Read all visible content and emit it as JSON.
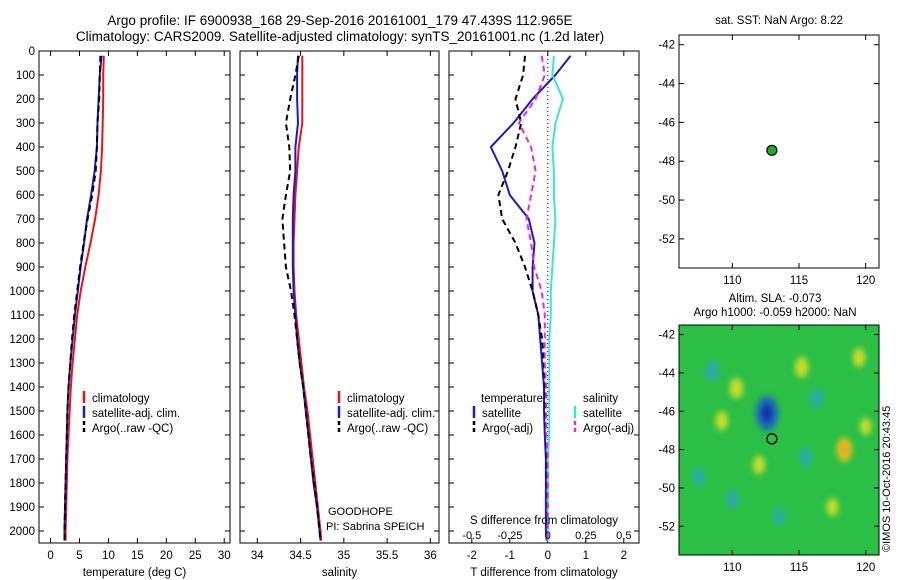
{
  "header": {
    "title_line1": "Argo profile: IF 6900938_168 29-Sep-2016 20161001_179 47.439S 112.965E",
    "title_line2": "Climatology: CARS2009. Satellite-adjusted climatology: synTS_20161001.nc (1.2d later)"
  },
  "colors": {
    "climatology": "#ee1111",
    "satellite": "#1a1acc",
    "argo": "#000000",
    "salinity_satellite": "#33e6e6",
    "salinity_argo": "#ee22ee",
    "argo_marker": "#22aa22"
  },
  "annotations": {
    "program": "GOODHOPE",
    "pi": "PI: Sabrina SPEICH",
    "credit": "©IMOS 10-Oct-2016 20:43:45"
  },
  "chart_data": [
    {
      "type": "line",
      "name": "temperature-profile",
      "xlabel": "temperature (deg C)",
      "ylabel": "",
      "xlim": [
        -2,
        31
      ],
      "ylim": [
        2050,
        0
      ],
      "xticks": [
        0,
        5,
        10,
        15,
        20,
        25,
        30
      ],
      "xtick_labels": [
        "0",
        "5",
        "10",
        "15",
        "20",
        "25",
        "30"
      ],
      "yticks": [
        0,
        100,
        200,
        300,
        400,
        500,
        600,
        700,
        800,
        900,
        1000,
        1100,
        1200,
        1300,
        1400,
        1500,
        1600,
        1700,
        1800,
        1900,
        2000
      ],
      "ytick_labels": [
        "0",
        "100",
        "200",
        "300",
        "400",
        "500",
        "600",
        "700",
        "800",
        "900",
        "1000",
        "1100",
        "1200",
        "1300",
        "1400",
        "1500",
        "1600",
        "1700",
        "1800",
        "1900",
        "2000"
      ],
      "legend": {
        "position": "center-right",
        "entries": [
          "climatology",
          "satellite-adj. clim.",
          "Argo(..raw -QC)"
        ]
      },
      "series": [
        {
          "name": "climatology",
          "role": "climatology",
          "style": "solid",
          "x": [
            9.2,
            9.1,
            9.1,
            9.0,
            8.9,
            8.7,
            8.3,
            7.7,
            6.9,
            6.0,
            5.2,
            4.6,
            4.2,
            3.8,
            3.5,
            3.3,
            3.1,
            2.9,
            2.8,
            2.7,
            2.6,
            2.6
          ],
          "y": [
            20,
            100,
            200,
            300,
            400,
            500,
            600,
            700,
            800,
            900,
            1000,
            1100,
            1200,
            1300,
            1400,
            1500,
            1600,
            1700,
            1800,
            1900,
            2000,
            2040
          ]
        },
        {
          "name": "satellite-adj. clim.",
          "role": "satellite",
          "style": "solid",
          "x": [
            8.8,
            8.5,
            8.3,
            8.1,
            8.0,
            7.6,
            7.0,
            6.3,
            5.8,
            5.2,
            4.7,
            4.2,
            3.8,
            3.4,
            3.1,
            2.9,
            2.8,
            2.7,
            2.6,
            2.5,
            2.4,
            2.4
          ],
          "y": [
            20,
            100,
            200,
            300,
            400,
            500,
            600,
            700,
            800,
            900,
            1000,
            1100,
            1200,
            1300,
            1400,
            1500,
            1600,
            1700,
            1800,
            1900,
            2000,
            2040
          ]
        },
        {
          "name": "Argo(..raw -QC)",
          "role": "argo",
          "style": "dashed",
          "x": [
            8.6,
            8.5,
            8.4,
            8.1,
            8.0,
            7.8,
            7.2,
            6.4,
            5.7,
            5.1,
            4.6,
            4.1,
            3.7,
            3.4,
            3.1,
            2.9,
            2.8,
            2.7,
            2.6,
            2.5,
            2.4,
            2.4
          ],
          "y": [
            20,
            100,
            200,
            300,
            400,
            500,
            600,
            700,
            800,
            900,
            1000,
            1100,
            1200,
            1300,
            1400,
            1500,
            1600,
            1700,
            1800,
            1900,
            2000,
            2040
          ]
        }
      ]
    },
    {
      "type": "line",
      "name": "salinity-profile",
      "xlabel": "salinity",
      "xlim": [
        33.8,
        36.1
      ],
      "ylim": [
        2050,
        0
      ],
      "xticks": [
        34,
        34.5,
        35,
        35.5,
        36
      ],
      "xtick_labels": [
        "34",
        "34.5",
        "35",
        "35.5",
        "36"
      ],
      "legend": {
        "position": "center-right",
        "entries": [
          "climatology",
          "satellite-adj. clim.",
          "Argo(..raw -QC)"
        ]
      },
      "series": [
        {
          "name": "climatology",
          "role": "climatology",
          "style": "solid",
          "x": [
            34.52,
            34.52,
            34.52,
            34.52,
            34.48,
            34.46,
            34.44,
            34.43,
            34.42,
            34.42,
            34.43,
            34.45,
            34.48,
            34.51,
            34.54,
            34.58,
            34.61,
            34.64,
            34.67,
            34.7,
            34.73,
            34.74
          ],
          "y": [
            20,
            100,
            200,
            300,
            400,
            500,
            600,
            700,
            800,
            900,
            1000,
            1100,
            1200,
            1300,
            1400,
            1500,
            1600,
            1700,
            1800,
            1900,
            2000,
            2040
          ]
        },
        {
          "name": "satellite-adj. clim.",
          "role": "satellite",
          "style": "solid",
          "x": [
            34.47,
            34.46,
            34.46,
            34.47,
            34.44,
            34.44,
            34.42,
            34.41,
            34.41,
            34.41,
            34.42,
            34.44,
            34.46,
            34.49,
            34.53,
            34.56,
            34.59,
            34.62,
            34.65,
            34.69,
            34.72,
            34.73
          ],
          "y": [
            20,
            100,
            200,
            300,
            400,
            500,
            600,
            700,
            800,
            900,
            1000,
            1100,
            1200,
            1300,
            1400,
            1500,
            1600,
            1700,
            1800,
            1900,
            2000,
            2040
          ]
        },
        {
          "name": "Argo(..raw -QC)",
          "role": "argo",
          "style": "dashed",
          "x": [
            34.48,
            34.44,
            34.38,
            34.33,
            34.37,
            34.38,
            34.33,
            34.29,
            34.31,
            34.33,
            34.39,
            34.43,
            34.46,
            34.49,
            34.53,
            34.56,
            34.59,
            34.62,
            34.66,
            34.69,
            34.72,
            34.73
          ],
          "y": [
            20,
            100,
            200,
            300,
            400,
            500,
            600,
            700,
            800,
            900,
            1000,
            1100,
            1200,
            1300,
            1400,
            1500,
            1600,
            1700,
            1800,
            1900,
            2000,
            2040
          ]
        }
      ]
    },
    {
      "type": "line",
      "name": "difference-profile",
      "xlabel": "T difference from climatology",
      "x2label": "S difference from climatology",
      "xlim": [
        -2.6,
        2.4
      ],
      "ylim": [
        2050,
        0
      ],
      "xticks": [
        -2,
        -1,
        0,
        1,
        2
      ],
      "xtick_labels": [
        "-2",
        "-1",
        "0",
        "1",
        "2"
      ],
      "x2lim": [
        -0.65,
        0.6
      ],
      "x2ticks": [
        -0.5,
        -0.25,
        0,
        0.25,
        0.5
      ],
      "x2tick_labels": [
        "-0.5",
        "-0.25",
        "0",
        "0.25",
        "0.5"
      ],
      "legend": {
        "position": "center-right",
        "groups": [
          "temperature",
          "salinity"
        ],
        "entries": [
          "satellite",
          "Argo(-adj)",
          "satellite",
          "Argo(-adj)"
        ]
      },
      "series": [
        {
          "name": "satellite",
          "group": "temperature",
          "role": "satellite",
          "style": "solid",
          "axis": "T",
          "x": [
            0.6,
            0.2,
            -0.4,
            -0.9,
            -1.5,
            -1.2,
            -1.0,
            -0.5,
            -0.35,
            -0.4,
            -0.4,
            -0.25,
            -0.2,
            -0.15,
            -0.1,
            -0.1,
            -0.08,
            -0.05,
            -0.05,
            -0.05,
            -0.05,
            -0.03
          ],
          "y": [
            20,
            100,
            200,
            300,
            400,
            500,
            600,
            700,
            800,
            900,
            1000,
            1100,
            1200,
            1300,
            1400,
            1500,
            1600,
            1700,
            1800,
            1900,
            2000,
            2040
          ]
        },
        {
          "name": "Argo(-adj)",
          "group": "temperature",
          "role": "argo",
          "style": "dashed",
          "axis": "T",
          "x": [
            -0.6,
            -0.65,
            -0.85,
            -0.7,
            -0.85,
            -1.05,
            -1.3,
            -1.2,
            -0.85,
            -0.6,
            -0.4,
            -0.25,
            -0.15,
            -0.1,
            -0.08,
            -0.07,
            -0.05,
            -0.04,
            -0.03,
            -0.02,
            -0.01,
            0
          ],
          "y": [
            20,
            100,
            200,
            300,
            400,
            500,
            600,
            700,
            800,
            900,
            1000,
            1100,
            1200,
            1300,
            1400,
            1500,
            1600,
            1700,
            1800,
            1900,
            2000,
            2040
          ]
        },
        {
          "name": "satellite",
          "group": "salinity",
          "role": "salinity_satellite",
          "style": "solid",
          "axis": "S",
          "x": [
            0.04,
            0.03,
            0.1,
            0.05,
            0.03,
            0.04,
            0.04,
            0.05,
            0.04,
            0.03,
            0.02,
            0.02,
            0.01,
            0.01,
            0.01,
            0.01,
            0.01,
            0,
            0,
            0,
            0,
            0
          ],
          "y": [
            20,
            100,
            200,
            300,
            400,
            500,
            600,
            700,
            800,
            900,
            1000,
            1100,
            1200,
            1300,
            1400,
            1500,
            1600,
            1700,
            1800,
            1900,
            2000,
            2040
          ]
        },
        {
          "name": "Argo(-adj)",
          "group": "salinity",
          "role": "salinity_argo",
          "style": "dashed",
          "axis": "S",
          "x": [
            -0.04,
            -0.02,
            -0.08,
            -0.19,
            -0.11,
            -0.08,
            -0.11,
            -0.14,
            -0.11,
            -0.09,
            -0.04,
            -0.02,
            -0.02,
            -0.02,
            -0.01,
            -0.01,
            -0.01,
            0,
            0,
            0,
            0,
            0
          ],
          "y": [
            20,
            100,
            200,
            300,
            400,
            500,
            600,
            700,
            800,
            900,
            1000,
            1100,
            1200,
            1300,
            1400,
            1500,
            1600,
            1700,
            1800,
            1900,
            2000,
            2040
          ]
        }
      ]
    },
    {
      "type": "scatter",
      "name": "sst-map",
      "title": "sat. SST: NaN Argo: 8.22",
      "xlim": [
        106,
        121
      ],
      "ylim": [
        -53.5,
        -41.5
      ],
      "xticks": [
        110,
        115,
        120
      ],
      "xtick_labels": [
        "110",
        "115",
        "120"
      ],
      "yticks": [
        -42,
        -44,
        -46,
        -48,
        -50,
        -52
      ],
      "ytick_labels": [
        "-42",
        "-44",
        "-46",
        "-48",
        "-50",
        "-52"
      ],
      "points": [
        {
          "x": 112.965,
          "y": -47.439,
          "label": "Argo"
        }
      ]
    },
    {
      "type": "heatmap",
      "name": "sla-map",
      "title_line1": "Altim. SLA: -0.073",
      "title_line2": "Argo h1000: -0.059 h2000: NaN",
      "xlim": [
        106,
        121
      ],
      "ylim": [
        -53.5,
        -41.5
      ],
      "xticks": [
        110,
        115,
        120
      ],
      "xtick_labels": [
        "110",
        "115",
        "120"
      ],
      "yticks": [
        -42,
        -44,
        -46,
        -48,
        -50,
        -52
      ],
      "ytick_labels": [
        "-42",
        "-44",
        "-46",
        "-48",
        "-50",
        "-52"
      ],
      "background": "#2bbf45",
      "features": [
        {
          "lon": 112.6,
          "lat": -46.1,
          "value": -0.3
        },
        {
          "lon": 108.5,
          "lat": -43.9,
          "value": -0.1
        },
        {
          "lon": 110.3,
          "lat": -44.8,
          "value": 0.1
        },
        {
          "lon": 118.4,
          "lat": -48.0,
          "value": 0.15
        },
        {
          "lon": 115.2,
          "lat": -43.7,
          "value": 0.1
        },
        {
          "lon": 119.5,
          "lat": -43.2,
          "value": 0.08
        },
        {
          "lon": 109.2,
          "lat": -46.5,
          "value": 0.08
        },
        {
          "lon": 112.0,
          "lat": -48.8,
          "value": 0.07
        },
        {
          "lon": 115.5,
          "lat": -48.4,
          "value": -0.07
        },
        {
          "lon": 116.3,
          "lat": -45.3,
          "value": -0.08
        },
        {
          "lon": 110.0,
          "lat": -50.6,
          "value": -0.07
        },
        {
          "lon": 117.5,
          "lat": -51.0,
          "value": 0.06
        },
        {
          "lon": 107.5,
          "lat": -49.4,
          "value": -0.06
        },
        {
          "lon": 120.0,
          "lat": -46.8,
          "value": 0.05
        },
        {
          "lon": 113.5,
          "lat": -51.5,
          "value": -0.05
        }
      ],
      "points": [
        {
          "x": 112.965,
          "y": -47.439,
          "label": "Argo"
        }
      ]
    }
  ]
}
